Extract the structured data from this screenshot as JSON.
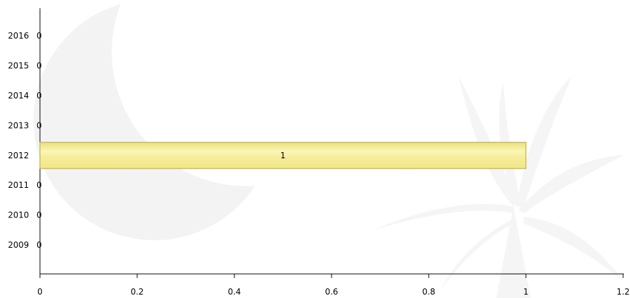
{
  "chart_data": {
    "type": "bar",
    "orientation": "horizontal",
    "categories": [
      "2009",
      "2010",
      "2011",
      "2012",
      "2013",
      "2014",
      "2015",
      "2016"
    ],
    "values": [
      0,
      0,
      0,
      1,
      0,
      0,
      0,
      0
    ],
    "data_labels": [
      "0",
      "0",
      "0",
      "1",
      "0",
      "0",
      "0",
      "0"
    ],
    "x_ticks": [
      "0",
      "0.2",
      "0.4",
      "0.6",
      "0.8",
      "1",
      "1.2"
    ],
    "xlim": [
      0,
      1.2
    ],
    "grid": false,
    "legend": "none",
    "bar_color": "#f7ef9a",
    "bar_edge_color": "#c9bd5a",
    "watermark": "moon-and-palmetto-emblem"
  }
}
